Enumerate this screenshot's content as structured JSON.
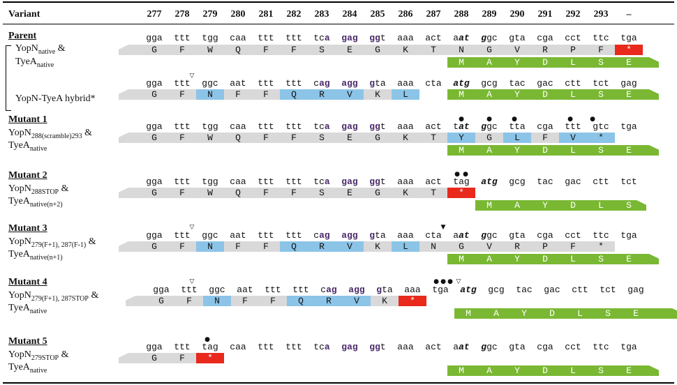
{
  "header": {
    "variant_label": "Variant",
    "positions": [
      "277",
      "278",
      "279",
      "280",
      "281",
      "282",
      "283",
      "284",
      "285",
      "286",
      "287",
      "288",
      "289",
      "290",
      "291",
      "292",
      "293",
      "–"
    ]
  },
  "variants": [
    {
      "name": "Parent",
      "desc_lines": [
        {
          "main": "YopN",
          "sub": "native",
          "tail": " &"
        },
        {
          "main": "TyeA",
          "sub": "native",
          "tail": ""
        }
      ],
      "hybrid_label": "YopN-TyeA hybrid*"
    },
    {
      "name": "Mutant 1",
      "desc_lines": [
        {
          "main": "YopN",
          "sub": "288(scramble)293",
          "tail": " &"
        },
        {
          "main": "TyeA",
          "sub": "native",
          "tail": ""
        }
      ]
    },
    {
      "name": "Mutant 2",
      "desc_lines": [
        {
          "main": "YopN",
          "sub": "288STOP",
          "tail": " &"
        },
        {
          "main": "TyeA",
          "sub": "native(n+2)",
          "tail": ""
        }
      ]
    },
    {
      "name": "Mutant 3",
      "desc_lines": [
        {
          "main": "YopN",
          "sub": "279(F+1), 287(F-1)",
          "tail": " &"
        },
        {
          "main": "TyeA",
          "sub": "native(n+1)",
          "tail": ""
        }
      ]
    },
    {
      "name": "Mutant 4",
      "desc_lines": [
        {
          "main": "YopN",
          "sub": "279(F+1), 287STOP",
          "tail": " &"
        },
        {
          "main": "TyeA",
          "sub": "native",
          "tail": ""
        }
      ]
    },
    {
      "name": "Mutant 5",
      "desc_lines": [
        {
          "main": "YopN",
          "sub": "279STOP",
          "tail": " &"
        },
        {
          "main": "TyeA",
          "sub": "native",
          "tail": ""
        }
      ]
    }
  ],
  "rows": [
    {
      "codons": [
        "gga",
        "ttt",
        "tgg",
        "caa",
        "ttt",
        "ttt",
        "tc|a",
        "gag",
        "gg|t",
        "aaa",
        "act",
        "a|at",
        "g|gc",
        "gta",
        "cga",
        "cct",
        "ttc",
        "tga"
      ],
      "aa": [
        "G",
        "F",
        "W",
        "Q",
        "F",
        "F",
        "S",
        "E",
        "G",
        "K",
        "T",
        "N",
        "G",
        "V",
        "R",
        "P",
        "F",
        "*"
      ],
      "tye": [
        "M",
        "A",
        "Y",
        "D",
        "L",
        "S",
        "E"
      ]
    },
    {
      "codons": [
        "gga",
        "ttt",
        "ggc",
        "aat",
        "ttt",
        "ttt",
        "c|ag",
        "agg",
        "g|ta",
        "aaa",
        "cta",
        "atg",
        "gcg",
        "tac",
        "gac",
        "ctt",
        "tct",
        "gag"
      ],
      "aa": [
        "G",
        "F",
        "N",
        "F",
        "F",
        "Q",
        "R",
        "V",
        "K",
        "L"
      ],
      "tye": [
        "M",
        "A",
        "Y",
        "D",
        "L",
        "S",
        "E"
      ]
    },
    {
      "codons": [
        "gga",
        "ttt",
        "tgg",
        "caa",
        "ttt",
        "ttt",
        "tc|a",
        "gag",
        "gg|t",
        "aaa",
        "act",
        "t|at",
        "g|gc",
        "tta",
        "cga",
        "ttt",
        "gtc",
        "tga"
      ],
      "aa": [
        "G",
        "F",
        "W",
        "Q",
        "F",
        "F",
        "S",
        "E",
        "G",
        "K",
        "T",
        "Y",
        "G",
        "L",
        "F",
        "V",
        "*"
      ],
      "tye": [
        "M",
        "A",
        "Y",
        "D",
        "L",
        "S",
        "E"
      ]
    },
    {
      "codons": [
        "gga",
        "ttt",
        "tgg",
        "caa",
        "ttt",
        "ttt",
        "tc|a",
        "gag",
        "gg|t",
        "aaa",
        "act",
        "tag",
        "atg",
        "gcg",
        "tac",
        "gac",
        "ctt",
        "tct"
      ],
      "aa": [
        "G",
        "F",
        "W",
        "Q",
        "F",
        "F",
        "S",
        "E",
        "G",
        "K",
        "T",
        "*"
      ],
      "tye": [
        "M",
        "A",
        "Y",
        "D",
        "L",
        "S"
      ]
    },
    {
      "codons": [
        "gga",
        "ttt",
        "ggc",
        "aat",
        "ttt",
        "ttt",
        "c|ag",
        "agg",
        "g|ta",
        "aaa",
        "cta",
        "a|at",
        "g|gc",
        "gta",
        "cga",
        "cct",
        "ttc",
        "tga"
      ],
      "aa": [
        "G",
        "F",
        "N",
        "F",
        "F",
        "Q",
        "R",
        "V",
        "K",
        "L",
        "N",
        "G",
        "V",
        "R",
        "P",
        "F",
        "*"
      ],
      "tye": [
        "M",
        "A",
        "Y",
        "D",
        "L",
        "S",
        "E"
      ]
    },
    {
      "codons": [
        "gga",
        "ttt",
        "ggc",
        "aat",
        "ttt",
        "ttt",
        "c|ag",
        "agg",
        "g|ta",
        "aaa",
        "tga",
        "atg",
        "gcg",
        "tac",
        "gac",
        "ctt",
        "tct",
        "gag"
      ],
      "aa": [
        "G",
        "F",
        "N",
        "F",
        "F",
        "Q",
        "R",
        "V",
        "K",
        "*"
      ],
      "tye": [
        "M",
        "A",
        "Y",
        "D",
        "L",
        "S",
        "E"
      ]
    },
    {
      "codons": [
        "gga",
        "ttt",
        "tag",
        "caa",
        "ttt",
        "ttt",
        "tc|a",
        "gag",
        "gg|t",
        "aaa",
        "act",
        "a|at",
        "g|gc",
        "gta",
        "cga",
        "cct",
        "ttc",
        "tga"
      ],
      "aa": [
        "G",
        "F",
        "*"
      ],
      "tye": [
        "M",
        "A",
        "Y",
        "D",
        "L",
        "S",
        "E"
      ]
    }
  ],
  "colors": {
    "gray": "#d9d9d9",
    "blue": "#8cc4e8",
    "red": "#e8291c",
    "green": "#7ab833",
    "purple": "#4a2a6a"
  }
}
